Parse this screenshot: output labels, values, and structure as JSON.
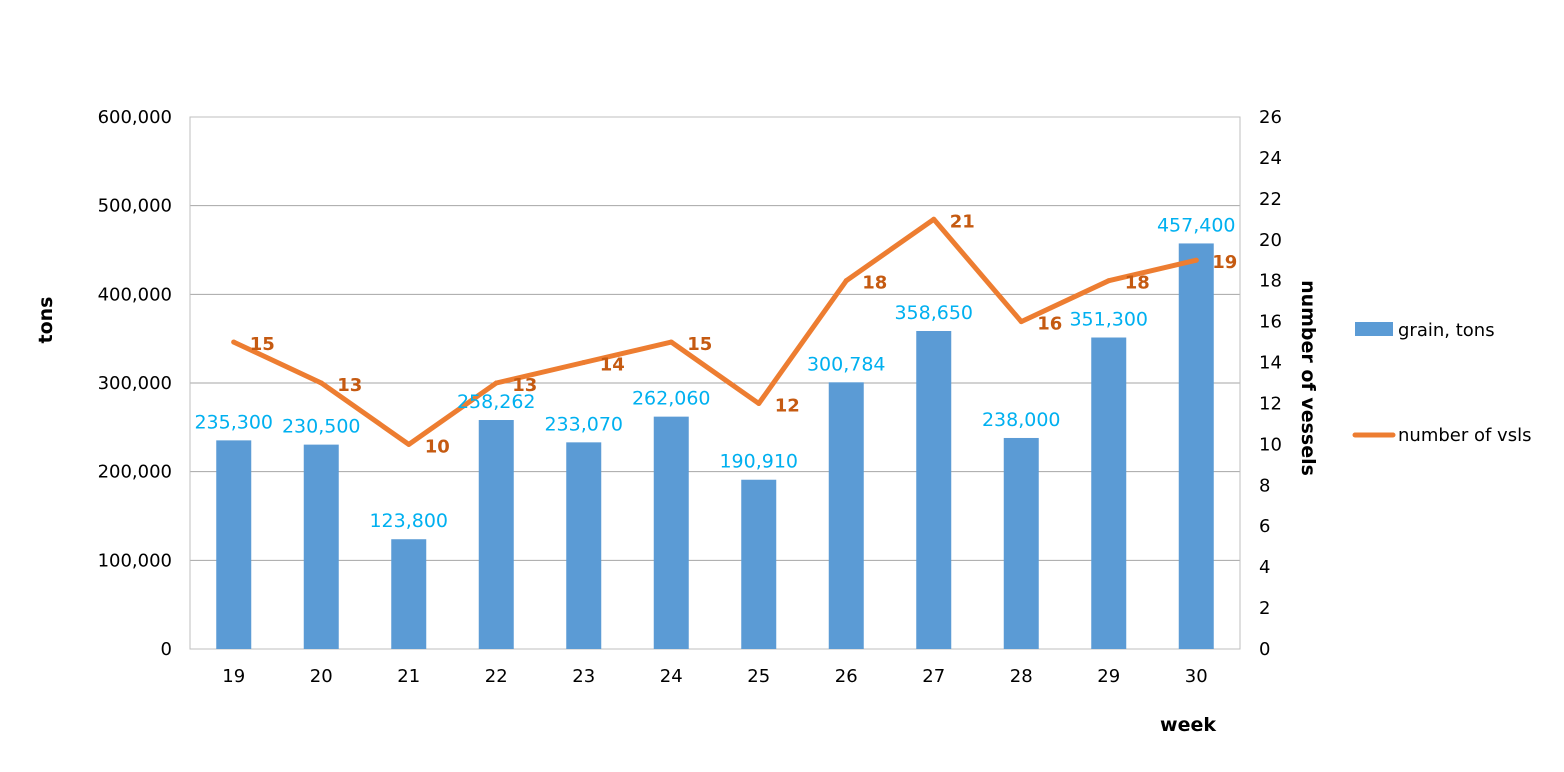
{
  "chart_data": {
    "type": "bar",
    "categories": [
      "19",
      "20",
      "21",
      "22",
      "23",
      "24",
      "25",
      "26",
      "27",
      "28",
      "29",
      "30"
    ],
    "series": [
      {
        "name": "grain, tons",
        "type": "bar",
        "axis": "left",
        "color": "#5b9bd5",
        "values": [
          235300,
          230500,
          123800,
          258262,
          233070,
          262060,
          190910,
          300784,
          358650,
          238000,
          351300,
          457400
        ],
        "labels": [
          "235,300",
          "230,500",
          "123,800",
          "258,262",
          "233,070",
          "262,060",
          "190,910",
          "300,784",
          "358,650",
          "238,000",
          "351,300",
          "457,400"
        ]
      },
      {
        "name": "number of vsls",
        "type": "line",
        "axis": "right",
        "color": "#ed7d31",
        "values": [
          15,
          13,
          10,
          13,
          14,
          15,
          12,
          18,
          21,
          16,
          18,
          19
        ],
        "labels": [
          "15",
          "13",
          "10",
          "13",
          "14",
          "15",
          "12",
          "18",
          "21",
          "16",
          "18",
          "19"
        ]
      }
    ],
    "xlabel": "week",
    "ylabel": "tons",
    "y2label": "number of vessels",
    "ylim": [
      0,
      600000
    ],
    "y2lim": [
      0,
      26
    ],
    "yticks": [
      "0",
      "100,000",
      "200,000",
      "300,000",
      "400,000",
      "500,000",
      "600,000"
    ],
    "y2ticks": [
      "0",
      "2",
      "4",
      "6",
      "8",
      "10",
      "12",
      "14",
      "16",
      "18",
      "20",
      "22",
      "24",
      "26"
    ],
    "grid": true,
    "legend_position": "right",
    "label_colors": {
      "bar": "#00b0f0",
      "line": "#c55a11"
    }
  }
}
